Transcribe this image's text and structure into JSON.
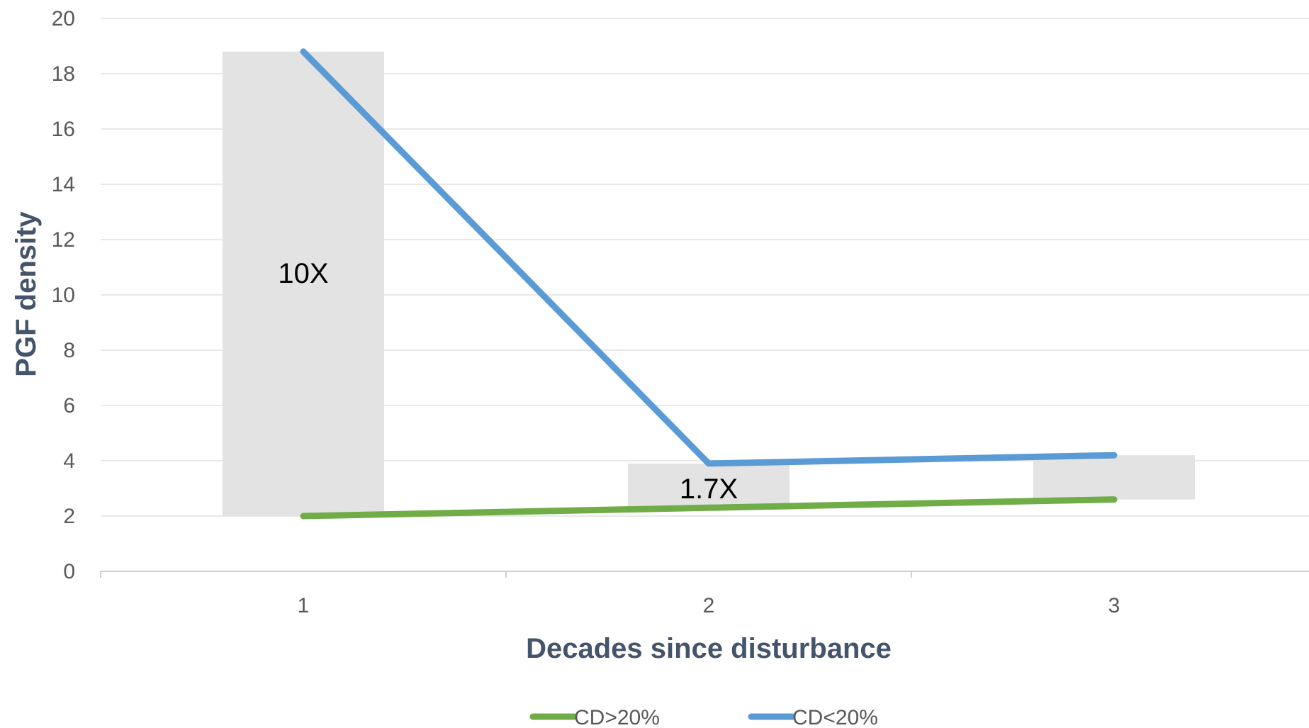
{
  "chart_data": {
    "type": "line",
    "x": [
      1,
      2,
      3
    ],
    "categories": [
      "1",
      "2",
      "3"
    ],
    "xlabel": "Decades since disturbance",
    "ylabel": "PGF density",
    "ylim": [
      0,
      20
    ],
    "yticks": [
      0,
      2,
      4,
      6,
      8,
      10,
      12,
      14,
      16,
      18,
      20
    ],
    "grid": true,
    "legend_position": "bottom",
    "series": [
      {
        "name": "CD>20%",
        "values": [
          2.0,
          2.3,
          2.6
        ],
        "color": "#70ad47"
      },
      {
        "name": "CD<20%",
        "values": [
          18.8,
          3.9,
          4.2
        ],
        "color": "#5b9bd5"
      }
    ],
    "range_bars": {
      "color": "#e3e3e3",
      "low": [
        2.0,
        2.3,
        2.6
      ],
      "high": [
        18.8,
        3.9,
        4.2
      ]
    },
    "annotations": [
      {
        "text": "10X",
        "x": 1,
        "y": 10.8
      },
      {
        "text": "1.7X",
        "x": 2,
        "y": 3.0
      }
    ]
  }
}
